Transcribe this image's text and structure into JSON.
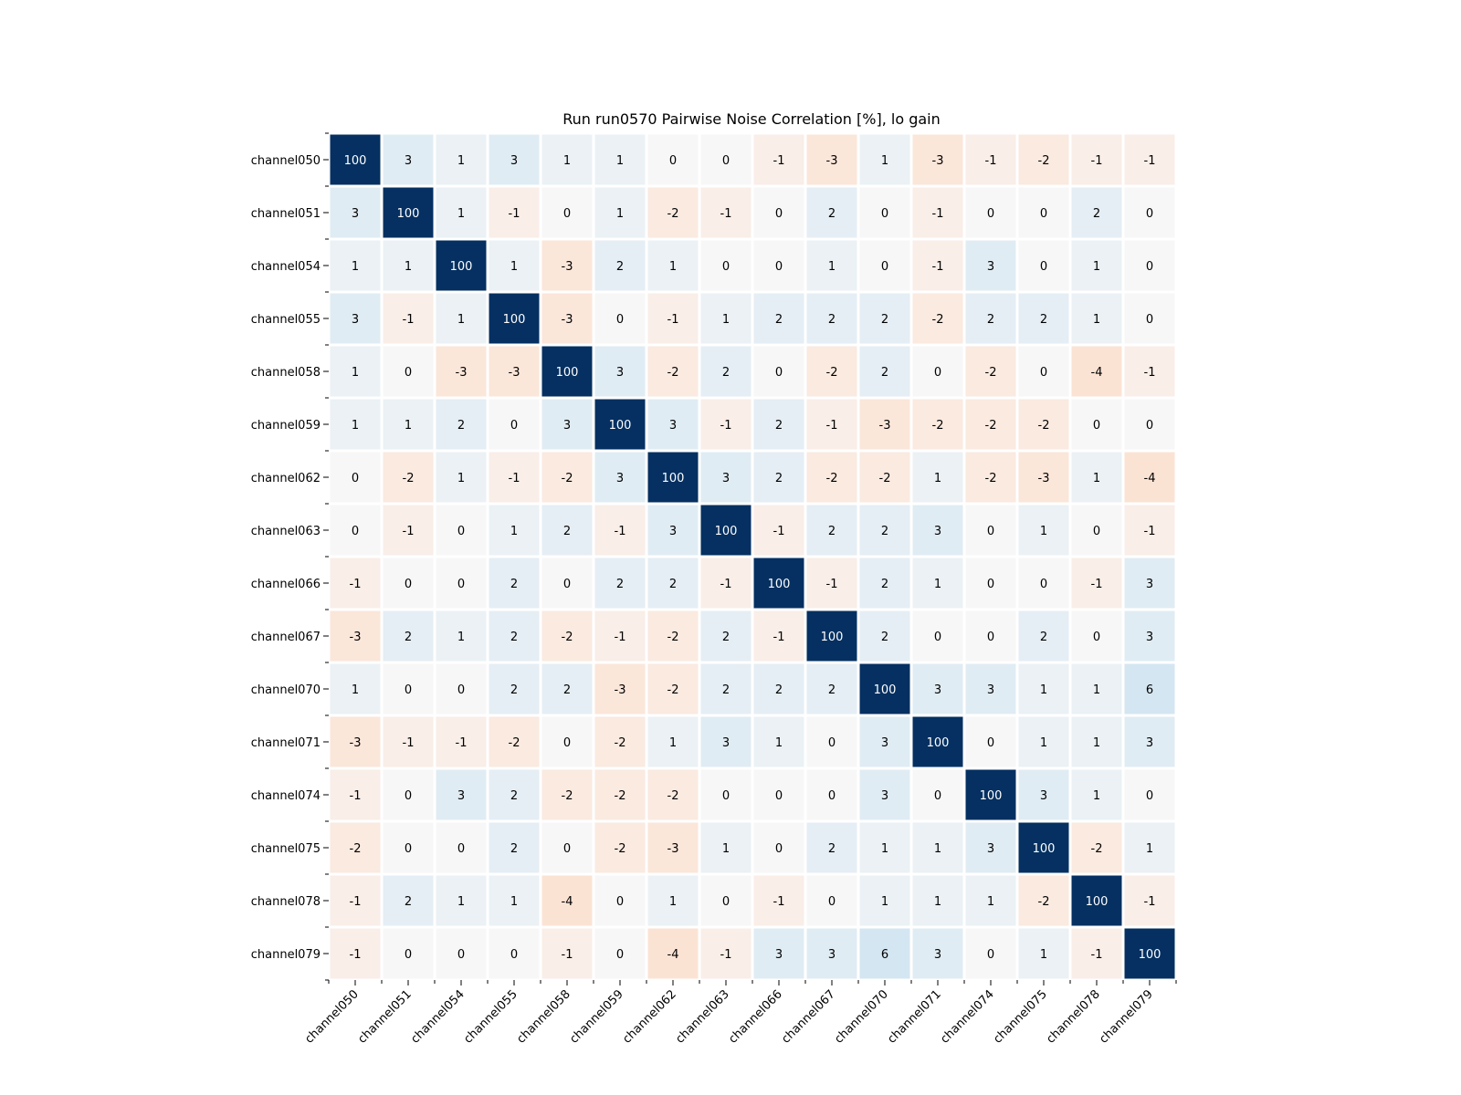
{
  "chart_data": {
    "type": "heatmap",
    "title": "Run run0570 Pairwise Noise Correlation [%], lo gain",
    "labels": [
      "channel050",
      "channel051",
      "channel054",
      "channel055",
      "channel058",
      "channel059",
      "channel062",
      "channel063",
      "channel066",
      "channel067",
      "channel070",
      "channel071",
      "channel074",
      "channel075",
      "channel078",
      "channel079"
    ],
    "values": [
      [
        100,
        3,
        1,
        3,
        1,
        1,
        0,
        0,
        -1,
        -3,
        1,
        -3,
        -1,
        -2,
        -1,
        -1
      ],
      [
        3,
        100,
        1,
        -1,
        0,
        1,
        -2,
        -1,
        0,
        2,
        0,
        -1,
        0,
        0,
        2,
        0
      ],
      [
        1,
        1,
        100,
        1,
        -3,
        2,
        1,
        0,
        0,
        1,
        0,
        -1,
        3,
        0,
        1,
        0
      ],
      [
        3,
        -1,
        1,
        100,
        -3,
        0,
        -1,
        1,
        2,
        2,
        2,
        -2,
        2,
        2,
        1,
        0
      ],
      [
        1,
        0,
        -3,
        -3,
        100,
        3,
        -2,
        2,
        0,
        -2,
        2,
        0,
        -2,
        0,
        -4,
        -1
      ],
      [
        1,
        1,
        2,
        0,
        3,
        100,
        3,
        -1,
        2,
        -1,
        -3,
        -2,
        -2,
        -2,
        0,
        0
      ],
      [
        0,
        -2,
        1,
        -1,
        -2,
        3,
        100,
        3,
        2,
        -2,
        -2,
        1,
        -2,
        -3,
        1,
        -4
      ],
      [
        0,
        -1,
        0,
        1,
        2,
        -1,
        3,
        100,
        -1,
        2,
        2,
        3,
        0,
        1,
        0,
        -1
      ],
      [
        -1,
        0,
        0,
        2,
        0,
        2,
        2,
        -1,
        100,
        -1,
        2,
        1,
        0,
        0,
        -1,
        3
      ],
      [
        -3,
        2,
        1,
        2,
        -2,
        -1,
        -2,
        2,
        -1,
        100,
        2,
        0,
        0,
        2,
        0,
        3
      ],
      [
        1,
        0,
        0,
        2,
        2,
        -3,
        -2,
        2,
        2,
        2,
        100,
        3,
        3,
        1,
        1,
        6
      ],
      [
        -3,
        -1,
        -1,
        -2,
        0,
        -2,
        1,
        3,
        1,
        0,
        3,
        100,
        0,
        1,
        1,
        3
      ],
      [
        -1,
        0,
        3,
        2,
        -2,
        -2,
        -2,
        0,
        0,
        0,
        3,
        0,
        100,
        3,
        1,
        0
      ],
      [
        -2,
        0,
        0,
        2,
        0,
        -2,
        -3,
        1,
        0,
        2,
        1,
        1,
        3,
        100,
        -2,
        1
      ],
      [
        -1,
        2,
        1,
        1,
        -4,
        0,
        1,
        0,
        -1,
        0,
        1,
        1,
        1,
        -2,
        100,
        -1
      ],
      [
        -1,
        0,
        0,
        0,
        -1,
        0,
        -4,
        -1,
        3,
        3,
        6,
        3,
        0,
        1,
        -1,
        100
      ]
    ],
    "colormap": "diverging blue-white-red",
    "colors": {
      "max": "#053061",
      "mid": "#f7f7f7",
      "min": "#67001f"
    },
    "vmin": -100,
    "vmax": 100
  }
}
